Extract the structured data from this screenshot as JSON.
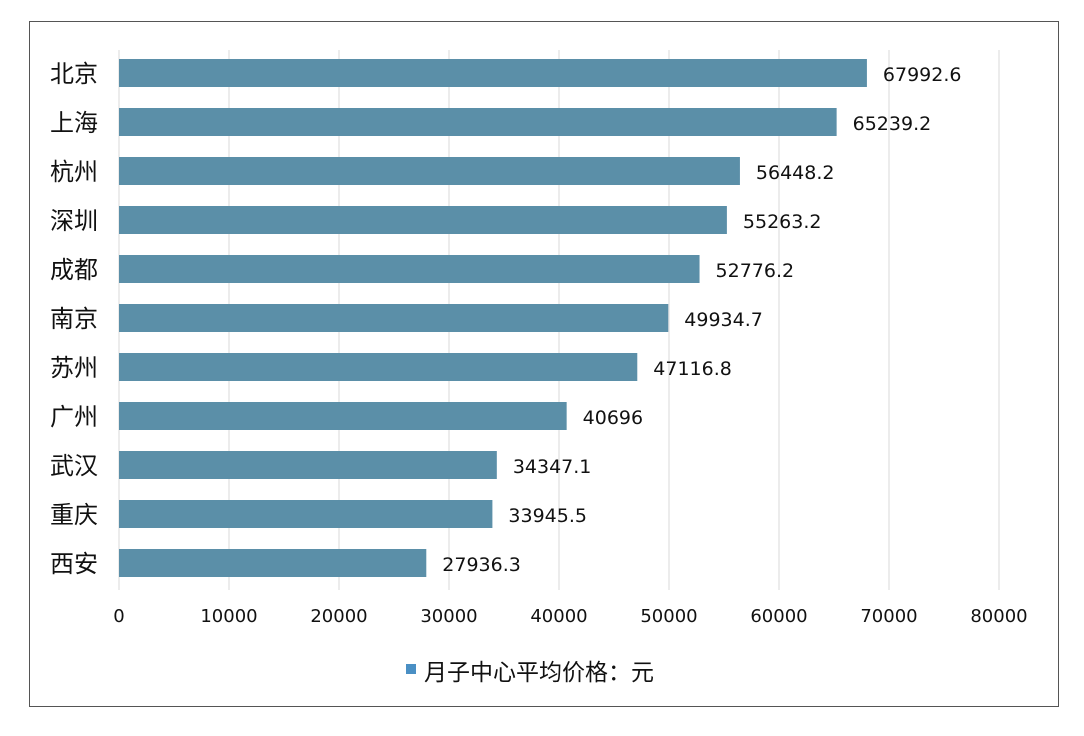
{
  "chart_data": {
    "type": "bar",
    "orientation": "horizontal",
    "categories": [
      "北京",
      "上海",
      "杭州",
      "深圳",
      "成都",
      "南京",
      "苏州",
      "广州",
      "武汉",
      "重庆",
      "西安"
    ],
    "series": [
      {
        "name": "月子中心平均价格：元",
        "values": [
          67992.6,
          65239.2,
          56448.2,
          55263.2,
          52776.2,
          49934.7,
          47116.8,
          40696,
          34347.1,
          33945.5,
          27936.3
        ]
      }
    ],
    "data_labels": [
      "67992.6",
      "65239.2",
      "56448.2",
      "55263.2",
      "52776.2",
      "49934.7",
      "47116.8",
      "40696",
      "34347.1",
      "33945.5",
      "27936.3"
    ],
    "xlim": [
      0,
      80000
    ],
    "xticks": [
      "0",
      "10000",
      "20000",
      "30000",
      "40000",
      "50000",
      "60000",
      "70000",
      "80000"
    ],
    "grid": "vertical",
    "legend_position": "bottom",
    "colors": {
      "bar": "#5b8fa8",
      "legend": "#4a8fc4",
      "grid": "#d9d9d9"
    }
  }
}
